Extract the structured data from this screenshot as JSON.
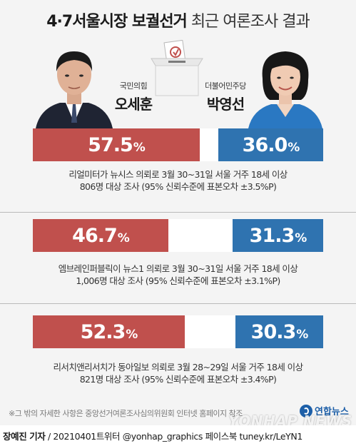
{
  "title": {
    "bold": "4·7서울시장 보궐선거",
    "light": "최근 여론조사 결과"
  },
  "candidates": {
    "oh": {
      "party": "국민의힘",
      "name": "오세훈",
      "color": "#c0504d"
    },
    "park": {
      "party": "더불어민주당",
      "name": "박영선",
      "color": "#2f73b0"
    }
  },
  "chart_data": {
    "type": "bar",
    "orientation": "horizontal",
    "series": [
      {
        "name": "오세훈",
        "values": [
          57.5,
          46.7,
          52.3
        ]
      },
      {
        "name": "박영선",
        "values": [
          36.0,
          31.3,
          30.3
        ]
      }
    ],
    "categories": [
      "리얼미터",
      "엠브레인퍼블릭",
      "리서치앤리서치"
    ]
  },
  "polls": [
    {
      "oh_value": "57.5",
      "park_value": "36.0",
      "unit": "%",
      "line1": "리얼미터가  뉴시스 의뢰로 3월 30~31일 서울 거주 18세 이상",
      "line2": "806명 대상 조사 (95% 신뢰수준에 표본오차 ±3.5%P)"
    },
    {
      "oh_value": "46.7",
      "park_value": "31.3",
      "unit": "%",
      "line1": "엠브레인퍼블릭이  뉴스1 의뢰로 3월 30~31일 서울 거주 18세 이상",
      "line2": "1,006명 대상 조사 (95% 신뢰수준에 표본오차 ±3.1%P)"
    },
    {
      "oh_value": "52.3",
      "park_value": "30.3",
      "unit": "%",
      "line1": "리서치앤리서치가  동아일보 의뢰로 3월 28~29일 서울 거주 18세 이상",
      "line2": "821명 대상 조사 (95% 신뢰수준에 표본오차 ±3.4%P)"
    }
  ],
  "footnote": "※그 밖의 자세한 사항은 중앙선거여론조사심의위원회 인터넷 홈페이지 참조",
  "logo": "연합뉴스",
  "watermark": "YONHAP NEWS",
  "credit": {
    "reporter": "장예진 기자",
    "rest": " / 20210401트위터 @yonhap_graphics  페이스북 tuney.kr/LeYN1"
  }
}
